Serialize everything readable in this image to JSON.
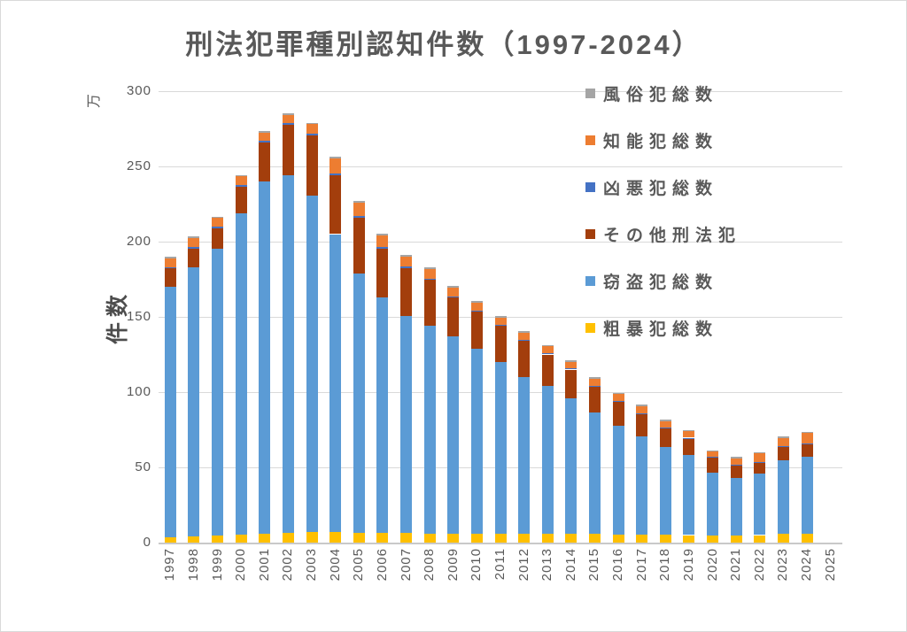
{
  "chart_data": {
    "type": "bar",
    "stacked": true,
    "title": "刑法犯罪種別認知件数（1997-2024）",
    "ylabel": "件数",
    "y_unit": "万",
    "xlabel": "",
    "ylim": [
      0,
      300
    ],
    "y_ticks": [
      0,
      50,
      100,
      150,
      200,
      250,
      300
    ],
    "grid": true,
    "legend_position": "right-top-inside",
    "value_unit_note": "values in 万件 (10,000 cases)",
    "categories": [
      "1997",
      "1998",
      "1999",
      "2000",
      "2001",
      "2002",
      "2003",
      "2004",
      "2005",
      "2006",
      "2007",
      "2008",
      "2009",
      "2010",
      "2011",
      "2012",
      "2013",
      "2014",
      "2015",
      "2016",
      "2017",
      "2018",
      "2019",
      "2020",
      "2021",
      "2022",
      "2023",
      "2024"
    ],
    "x_axis_labels": [
      "1997",
      "1998",
      "1999",
      "2000",
      "2001",
      "2002",
      "2003",
      "2004",
      "2005",
      "2006",
      "2007",
      "2008",
      "2009",
      "2010",
      "2011",
      "2012",
      "2013",
      "2014",
      "2015",
      "2016",
      "2017",
      "2018",
      "2019",
      "2020",
      "2021",
      "2022",
      "2023",
      "2024",
      "2025"
    ],
    "series": [
      {
        "id": "violent-offenses",
        "name": "粗暴犯総数",
        "color": "#FFC000",
        "values": [
          3.5,
          4.0,
          4.5,
          5.5,
          6.0,
          6.5,
          7.0,
          6.8,
          6.5,
          6.2,
          6.2,
          6.0,
          5.8,
          6.0,
          5.8,
          6.0,
          6.0,
          5.9,
          5.6,
          5.5,
          5.3,
          5.2,
          5.0,
          4.8,
          4.9,
          5.0,
          5.8,
          5.8
        ]
      },
      {
        "id": "theft-offenses",
        "name": "窃盗犯総数",
        "color": "#5B9BD5",
        "values": [
          166.6,
          178.9,
          191.0,
          213.1,
          234.0,
          237.7,
          223.6,
          198.2,
          172.5,
          156.7,
          144.4,
          138.0,
          131.0,
          122.9,
          114.0,
          104.0,
          98.1,
          89.7,
          80.8,
          72.3,
          65.5,
          58.2,
          53.3,
          41.7,
          38.2,
          40.8,
          48.9,
          51.0
        ]
      },
      {
        "id": "other-penal-code",
        "name": "その他刑法犯",
        "color": "#A33E0C",
        "values": [
          12.2,
          12.4,
          13.6,
          18.1,
          25.8,
          33.3,
          40.2,
          39.2,
          37.0,
          32.5,
          32.0,
          30.7,
          26.1,
          24.4,
          24.1,
          24.1,
          20.9,
          19.4,
          17.1,
          15.6,
          14.6,
          12.4,
          10.9,
          10.2,
          8.0,
          7.3,
          8.7,
          8.3
        ]
      },
      {
        "id": "heinous-offenses",
        "name": "凶悪犯総数",
        "color": "#4472C4",
        "values": [
          0.8,
          0.9,
          1.0,
          1.1,
          1.2,
          1.3,
          1.2,
          1.1,
          1.0,
          0.9,
          0.8,
          0.7,
          0.7,
          0.7,
          0.6,
          0.6,
          0.6,
          0.6,
          0.5,
          0.5,
          0.5,
          0.5,
          0.5,
          0.4,
          0.4,
          0.5,
          0.6,
          0.7
        ]
      },
      {
        "id": "intellectual-offenses",
        "name": "知能犯総数",
        "color": "#ED7D31",
        "values": [
          5.9,
          6.2,
          5.5,
          5.6,
          5.6,
          5.6,
          6.0,
          10.0,
          8.9,
          7.8,
          6.5,
          6.3,
          5.7,
          5.4,
          4.8,
          4.6,
          4.8,
          4.6,
          4.9,
          4.7,
          4.6,
          4.4,
          4.2,
          3.4,
          4.4,
          5.6,
          5.4,
          7.0
        ]
      },
      {
        "id": "moral-offenses",
        "name": "風俗犯総数",
        "color": "#A5A5A5",
        "values": [
          1.0,
          1.0,
          1.0,
          1.0,
          1.0,
          1.0,
          1.0,
          1.0,
          1.0,
          1.0,
          1.0,
          1.0,
          1.0,
          1.0,
          1.0,
          1.0,
          1.0,
          1.0,
          1.0,
          1.0,
          1.0,
          1.0,
          1.0,
          0.9,
          0.9,
          0.9,
          0.9,
          1.0
        ]
      }
    ],
    "legend_order_top_to_bottom": [
      "moral-offenses",
      "intellectual-offenses",
      "heinous-offenses",
      "other-penal-code",
      "theft-offenses",
      "violent-offenses"
    ]
  }
}
